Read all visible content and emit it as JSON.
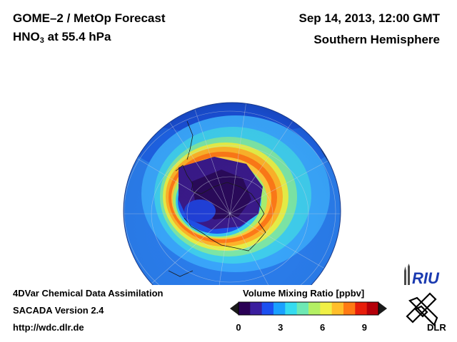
{
  "header": {
    "title_line1": "GOME–2 / MetOp Forecast",
    "species_prefix": "HNO",
    "species_subscript": "3",
    "species_suffix": " at 55.4 hPa",
    "date": "Sep 14, 2013, 12:00 GMT",
    "region": "Southern Hemisphere"
  },
  "footer": {
    "line1": "4DVar Chemical Data Assimilation",
    "line2": "SACADA Version 2.4",
    "url": "http://wdc.dlr.de"
  },
  "colorbar": {
    "title": "Volume Mixing Ratio [ppbv]",
    "ticks": [
      "0",
      "3",
      "6",
      "9"
    ],
    "range": [
      0,
      10
    ],
    "colors": [
      "#2a0055",
      "#3a1e9e",
      "#1c50f0",
      "#1aa0ff",
      "#35dbf0",
      "#6ee8b4",
      "#b4f064",
      "#f0f046",
      "#ffbe2a",
      "#ff7a14",
      "#e81e0a",
      "#b4000a"
    ]
  },
  "logos": {
    "riu": "RIU",
    "dlr": "DLR"
  },
  "icons": {
    "riu": "riu-cathedral-icon",
    "dlr": "dlr-cross-icon"
  }
}
